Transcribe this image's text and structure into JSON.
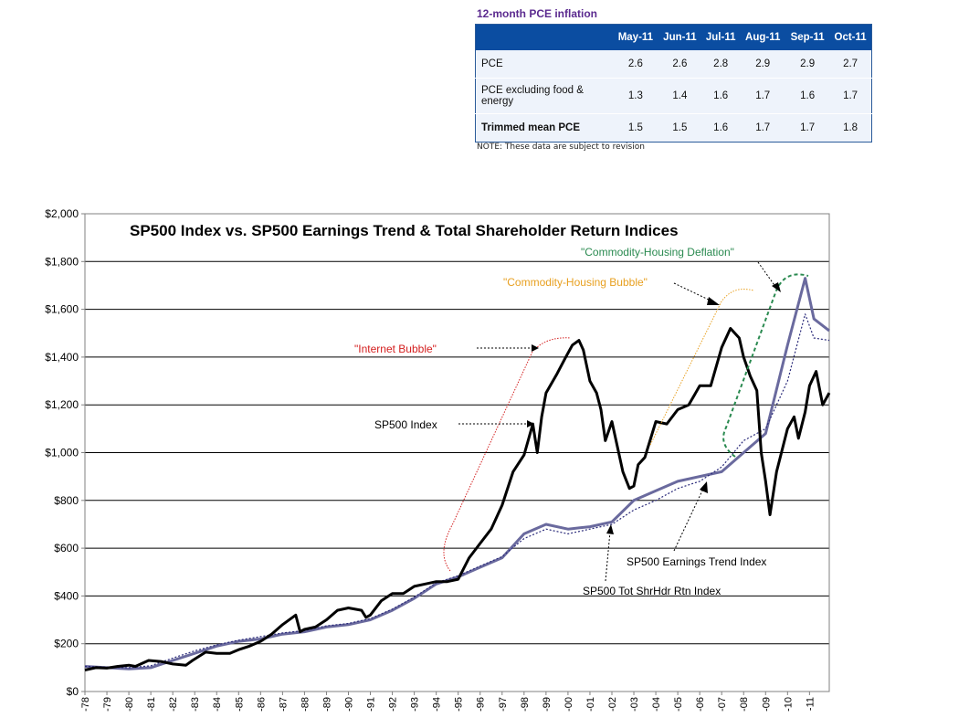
{
  "pce": {
    "title": "12-month PCE inflation",
    "headers": [
      "",
      "May-11",
      "Jun-11",
      "Jul-11",
      "Aug-11",
      "Sep-11",
      "Oct-11"
    ],
    "rows": [
      {
        "label": "PCE",
        "values": [
          "2.6",
          "2.6",
          "2.8",
          "2.9",
          "2.9",
          "2.7"
        ]
      },
      {
        "label": "PCE excluding food & energy",
        "values": [
          "1.3",
          "1.4",
          "1.6",
          "1.7",
          "1.6",
          "1.7"
        ]
      },
      {
        "label": "Trimmed mean PCE",
        "values": [
          "1.5",
          "1.5",
          "1.6",
          "1.7",
          "1.7",
          "1.8"
        ]
      }
    ],
    "note": "NOTE: These data are subject to revision"
  },
  "chart_data": {
    "type": "line",
    "title": "SP500 Index vs. SP500 Earnings Trend & Total Shareholder Return Indices",
    "xlabel": "",
    "ylabel": "",
    "ylim": [
      0,
      2000
    ],
    "xlim": [
      1978,
      2011.9
    ],
    "y_ticks": [
      "$0",
      "$200",
      "$400",
      "$600",
      "$800",
      "$1,000",
      "$1,200",
      "$1,400",
      "$1,600",
      "$1,800",
      "$2,000"
    ],
    "x_ticks": [
      "-78",
      "-79",
      "-80",
      "-81",
      "-82",
      "-83",
      "-84",
      "-85",
      "-86",
      "-87",
      "-88",
      "-89",
      "-90",
      "-91",
      "-92",
      "-93",
      "-94",
      "-95",
      "-96",
      "-97",
      "-98",
      "-99",
      "-00",
      "-01",
      "-02",
      "-03",
      "-04",
      "-05",
      "-06",
      "-07",
      "-08",
      "-09",
      "-10",
      "-11"
    ],
    "grid": true,
    "colors": {
      "sp500": "#000000",
      "earnings": "#6a6a9e",
      "tsr": "#2a2a7a",
      "internet": "#d42020",
      "housing_bubble": "#e8a020",
      "deflation": "#2a8a50"
    },
    "series": [
      {
        "name": "SP500 Index",
        "x": [
          1978.0,
          1978.5,
          1979.0,
          1979.5,
          1980.0,
          1980.3,
          1980.9,
          1981.5,
          1982.0,
          1982.6,
          1982.9,
          1983.5,
          1984.0,
          1984.6,
          1985.0,
          1985.5,
          1986.0,
          1986.5,
          1987.0,
          1987.6,
          1987.8,
          1988.0,
          1988.5,
          1989.0,
          1989.5,
          1990.0,
          1990.6,
          1990.8,
          1991.0,
          1991.5,
          1992.0,
          1992.5,
          1993.0,
          1993.5,
          1994.0,
          1994.5,
          1995.0,
          1995.5,
          1996.0,
          1996.5,
          1997.0,
          1997.5,
          1998.0,
          1998.4,
          1998.6,
          1998.8,
          1999.0,
          1999.5,
          1999.9,
          2000.2,
          2000.5,
          2000.7,
          2001.0,
          2001.3,
          2001.5,
          2001.7,
          2002.0,
          2002.5,
          2002.8,
          2003.0,
          2003.2,
          2003.5,
          2004.0,
          2004.5,
          2005.0,
          2005.5,
          2006.0,
          2006.5,
          2007.0,
          2007.4,
          2007.8,
          2008.0,
          2008.3,
          2008.6,
          2008.8,
          2009.0,
          2009.2,
          2009.5,
          2010.0,
          2010.3,
          2010.5,
          2010.8,
          2011.0,
          2011.3,
          2011.6,
          2011.9
        ],
        "y": [
          90,
          100,
          98,
          105,
          110,
          105,
          130,
          125,
          115,
          110,
          130,
          165,
          160,
          160,
          175,
          190,
          210,
          240,
          280,
          320,
          250,
          260,
          270,
          300,
          340,
          350,
          340,
          310,
          320,
          380,
          410,
          410,
          440,
          450,
          460,
          460,
          470,
          560,
          620,
          680,
          780,
          920,
          990,
          1120,
          1000,
          1150,
          1250,
          1330,
          1400,
          1450,
          1470,
          1430,
          1300,
          1250,
          1180,
          1050,
          1130,
          920,
          850,
          860,
          950,
          980,
          1130,
          1120,
          1180,
          1200,
          1280,
          1280,
          1440,
          1520,
          1480,
          1400,
          1320,
          1260,
          1000,
          880,
          740,
          920,
          1100,
          1150,
          1060,
          1170,
          1280,
          1340,
          1200,
          1250
        ]
      },
      {
        "name": "SP500 Earnings Trend Index",
        "x": [
          1978,
          1979,
          1980,
          1981,
          1982,
          1983,
          1984,
          1985,
          1986,
          1987,
          1988,
          1989,
          1990,
          1991,
          1992,
          1993,
          1994,
          1995,
          1996,
          1997,
          1998,
          1999,
          2000,
          2001,
          2002,
          2003,
          2004,
          2005,
          2006,
          2007,
          2008,
          2009,
          2010,
          2010.8,
          2011.2,
          2011.9
        ],
        "y": [
          105,
          100,
          95,
          100,
          130,
          160,
          190,
          210,
          220,
          240,
          250,
          270,
          280,
          300,
          340,
          390,
          450,
          480,
          520,
          560,
          660,
          700,
          680,
          690,
          710,
          800,
          840,
          880,
          900,
          920,
          1000,
          1080,
          1450,
          1730,
          1560,
          1510
        ]
      },
      {
        "name": "SP500 Tot ShrHdr Rtn Index",
        "x": [
          1978,
          1979,
          1980,
          1981,
          1982,
          1983,
          1984,
          1985,
          1986,
          1987,
          1988,
          1989,
          1990,
          1991,
          1992,
          1993,
          1994,
          1995,
          1996,
          1997,
          1998,
          1999,
          2000,
          2001,
          2002,
          2003,
          2004,
          2005,
          2006,
          2007,
          2008,
          2009,
          2010,
          2010.8,
          2011.2,
          2011.9
        ],
        "y": [
          105,
          102,
          100,
          108,
          140,
          170,
          195,
          215,
          230,
          245,
          255,
          275,
          285,
          305,
          345,
          395,
          455,
          485,
          525,
          565,
          640,
          680,
          660,
          680,
          700,
          760,
          800,
          850,
          880,
          940,
          1050,
          1100,
          1300,
          1580,
          1480,
          1470
        ]
      }
    ],
    "annotations": [
      {
        "text": "\"Internet Bubble\"",
        "color": "#d42020"
      },
      {
        "text": "SP500 Index",
        "color": "#000000"
      },
      {
        "text": "\"Commodity-Housing Bubble\"",
        "color": "#e8a020"
      },
      {
        "text": "\"Commodity-Housing Deflation\"",
        "color": "#2a8a50"
      },
      {
        "text": "SP500 Earnings Trend Index",
        "color": "#000000"
      },
      {
        "text": "SP500 Tot ShrHdr Rtn Index",
        "color": "#000000"
      }
    ]
  }
}
